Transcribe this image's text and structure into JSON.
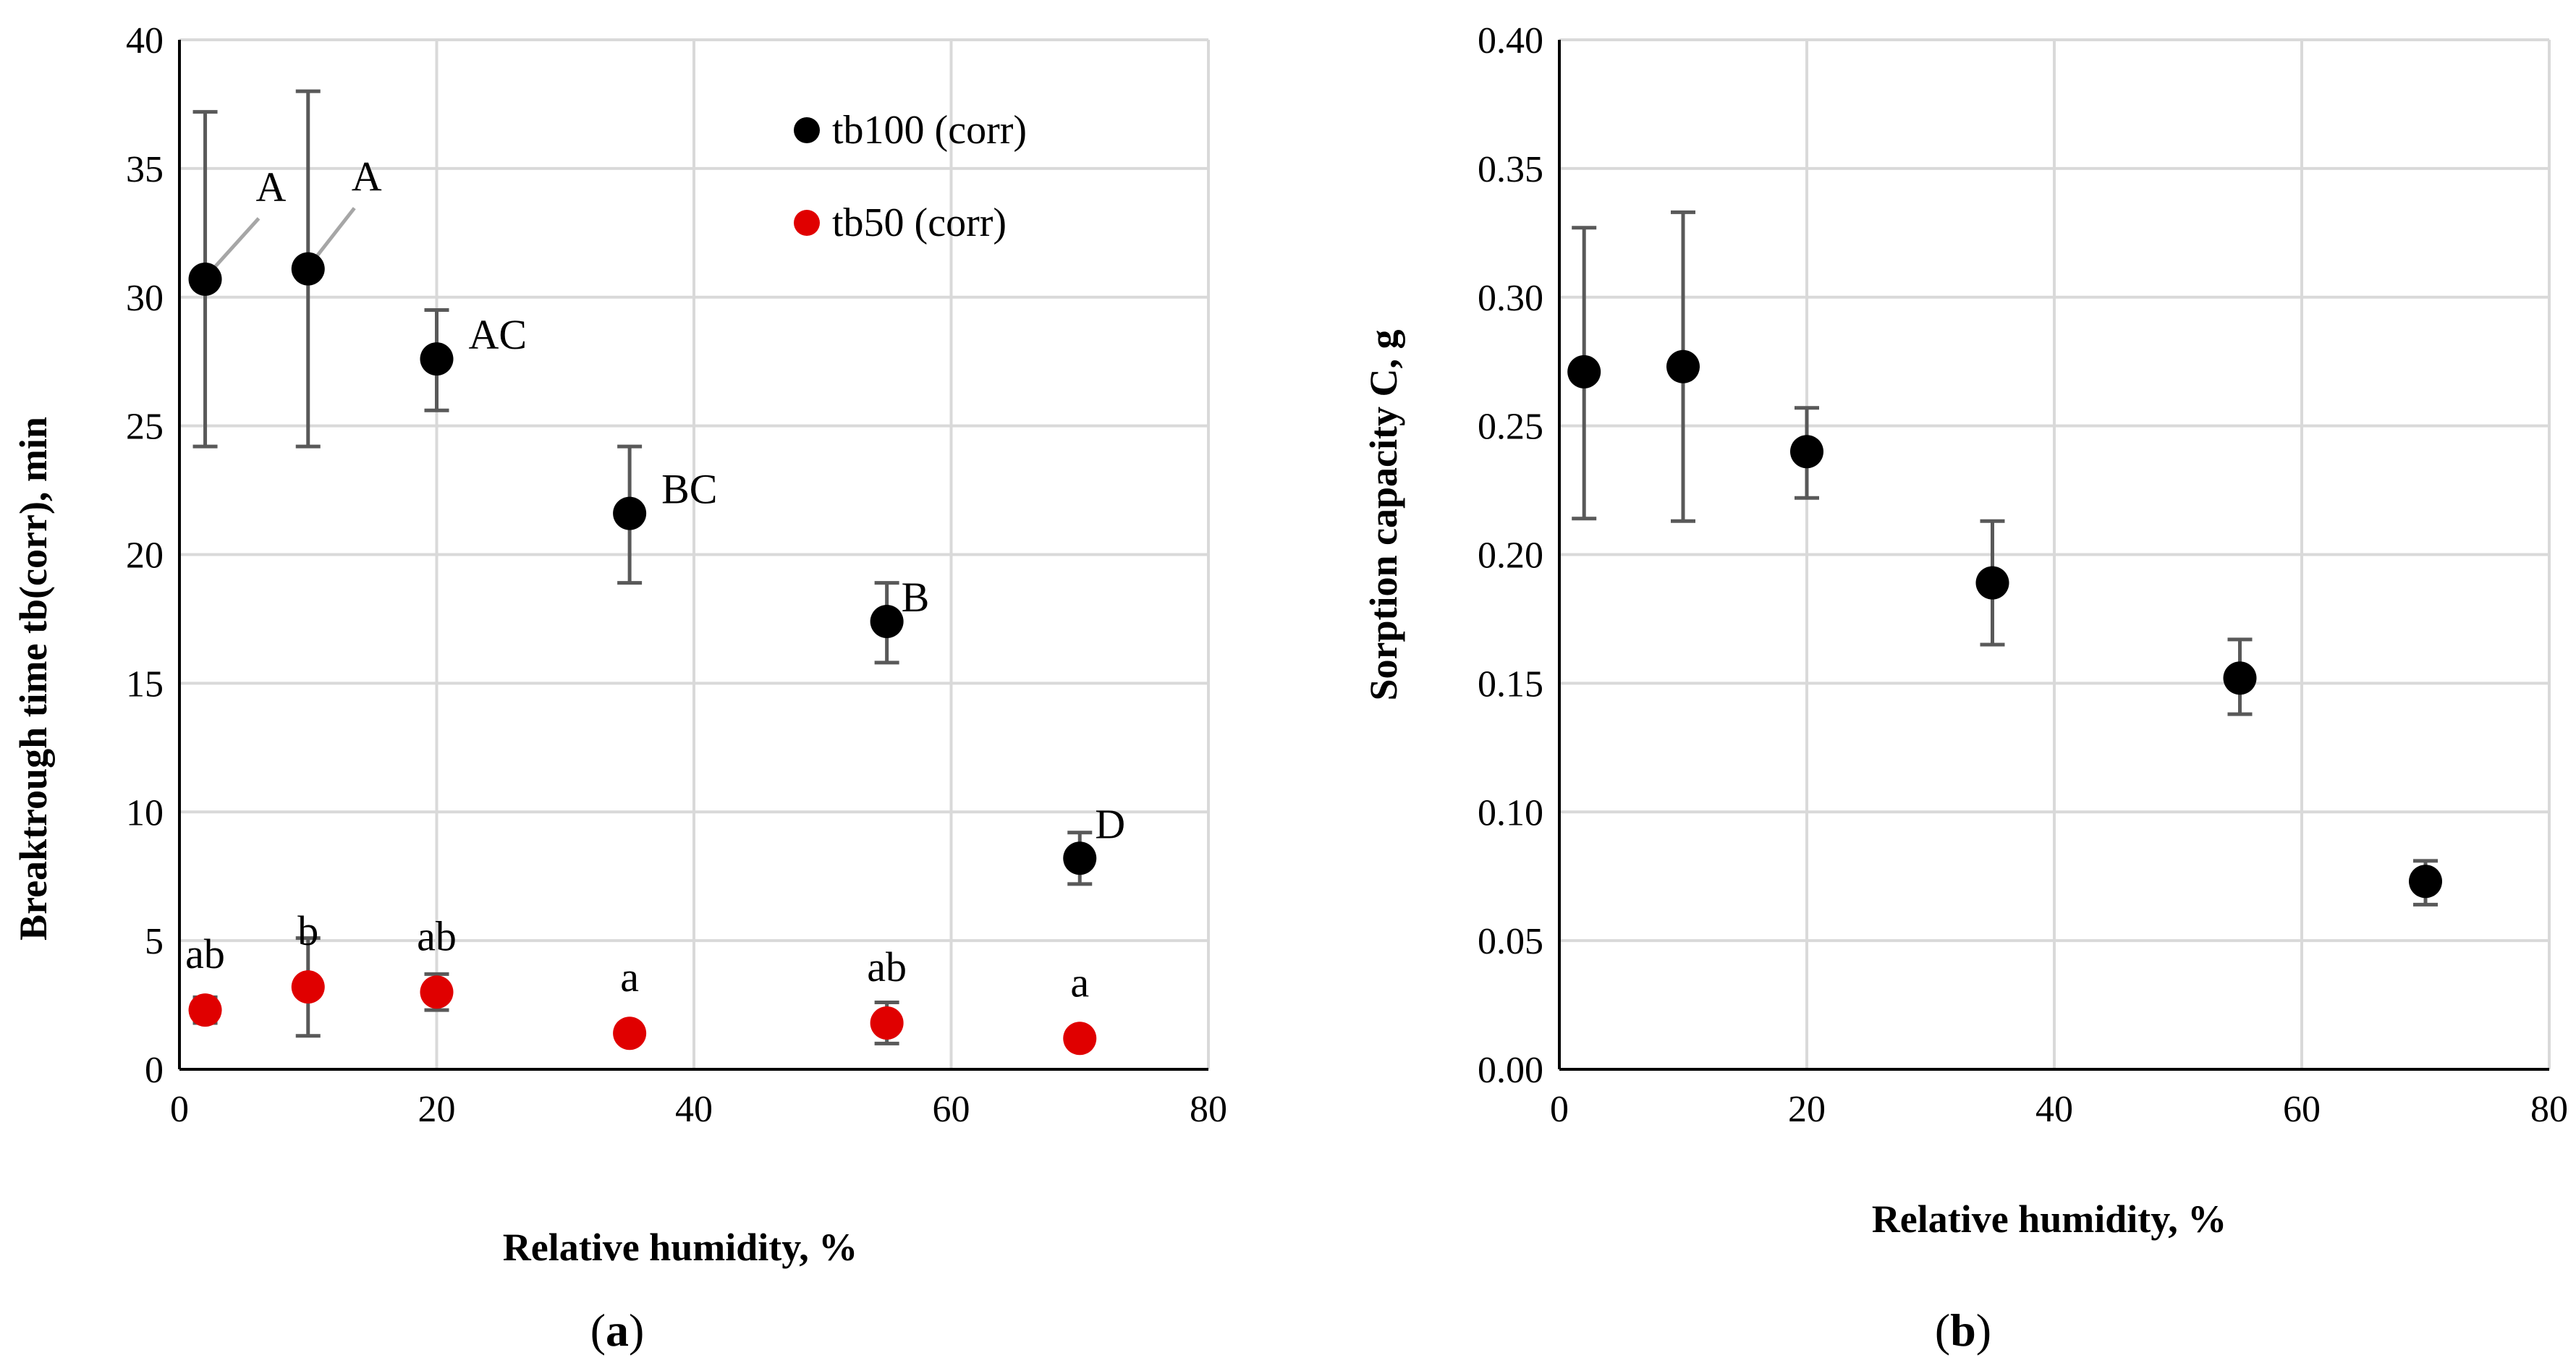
{
  "colors": {
    "tb100": "#000000",
    "tb50": "#e00000",
    "grid": "#d9d9d9",
    "axis": "#000000",
    "errorbar": "#595959",
    "leader": "#a6a6a6"
  },
  "chart_data": [
    {
      "id": "a",
      "type": "scatter",
      "caption": {
        "open": "(",
        "letter": "a",
        "close": ")"
      },
      "xlabel": "Relative humidity, %",
      "ylabel": "Breaktrough time tb(corr), min",
      "xlim": [
        0,
        80
      ],
      "ylim": [
        0,
        40
      ],
      "xticks": [
        "0",
        "20",
        "40",
        "60",
        "80"
      ],
      "yticks": [
        "0",
        "5",
        "10",
        "15",
        "20",
        "25",
        "30",
        "35",
        "40"
      ],
      "grid": true,
      "legend": {
        "position": "top-right"
      },
      "series": [
        {
          "name": "tb100 (corr)",
          "color": "#000000",
          "x": [
            2,
            10,
            20,
            35,
            55,
            70
          ],
          "y": [
            30.7,
            31.1,
            27.6,
            21.6,
            17.4,
            8.2
          ],
          "err_low": [
            24.2,
            24.2,
            25.6,
            18.9,
            15.8,
            7.2
          ],
          "err_high": [
            37.2,
            38.0,
            29.5,
            24.2,
            18.9,
            9.2
          ],
          "labels": [
            "A",
            "A",
            "AC",
            "BC",
            "B",
            "D"
          ]
        },
        {
          "name": "tb50 (corr)",
          "color": "#e00000",
          "x": [
            2,
            10,
            20,
            35,
            55,
            70
          ],
          "y": [
            2.3,
            3.2,
            3.0,
            1.4,
            1.8,
            1.2
          ],
          "err_low": [
            1.8,
            1.3,
            2.3,
            1.4,
            1.0,
            1.2
          ],
          "err_high": [
            2.8,
            5.1,
            3.7,
            1.4,
            2.6,
            1.2
          ],
          "labels": [
            "ab",
            "b",
            "ab",
            "a",
            "ab",
            "a"
          ]
        }
      ]
    },
    {
      "id": "b",
      "type": "scatter",
      "caption": {
        "open": "(",
        "letter": "b",
        "close": ")"
      },
      "xlabel": "Relative humidity, %",
      "ylabel": "Sorption capacity C, g",
      "xlim": [
        0,
        80
      ],
      "ylim": [
        0,
        0.4
      ],
      "xticks": [
        "0",
        "20",
        "40",
        "60",
        "80"
      ],
      "yticks": [
        "0.00",
        "0.05",
        "0.10",
        "0.15",
        "0.20",
        "0.25",
        "0.30",
        "0.35",
        "0.40"
      ],
      "grid": true,
      "series": [
        {
          "name": "C",
          "color": "#000000",
          "x": [
            2,
            10,
            20,
            35,
            55,
            70
          ],
          "y": [
            0.271,
            0.273,
            0.24,
            0.189,
            0.152,
            0.073
          ],
          "err_low": [
            0.214,
            0.213,
            0.222,
            0.165,
            0.138,
            0.064
          ],
          "err_high": [
            0.327,
            0.333,
            0.257,
            0.213,
            0.167,
            0.081
          ]
        }
      ]
    }
  ]
}
